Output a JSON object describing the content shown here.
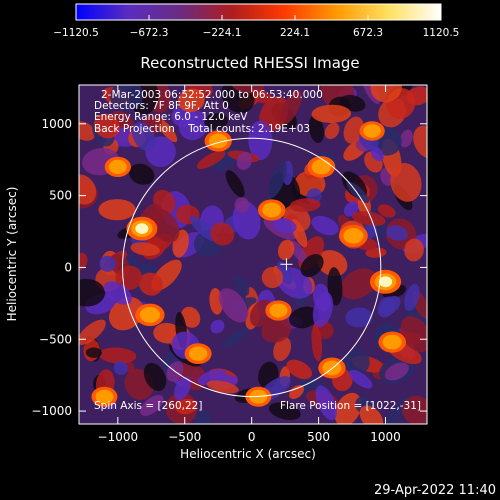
{
  "chart_data": {
    "type": "heatmap",
    "title": "Reconstructed RHESSI Image",
    "xlabel": "Heliocentric X (arcsec)",
    "ylabel": "Heliocentric Y (arcsec)",
    "xlim": [
      -1290,
      1310
    ],
    "ylim": [
      -1090,
      1270
    ],
    "xticks": [
      -1000,
      -500,
      0,
      500,
      1000
    ],
    "yticks": [
      -1000,
      -500,
      0,
      500,
      1000
    ],
    "xtick_labels": [
      "−1000",
      "−500",
      "0",
      "500",
      "1000"
    ],
    "ytick_labels": [
      "−1000",
      "−500",
      "0",
      "500",
      "1000"
    ],
    "colorbar": {
      "range": [
        -1120.5,
        1120.5
      ],
      "tick_values": [
        -1120.5,
        -672.3,
        -224.1,
        224.1,
        672.3,
        1120.5
      ],
      "tick_labels": [
        "−1120.5",
        "−672.3",
        "−224.1",
        "224.1",
        "672.3",
        "1120.5"
      ],
      "colors": [
        "#0000ff",
        "#5a2cc0",
        "#6a2c82",
        "#b01d1d",
        "#ff3a00",
        "#ff9a00",
        "#ffe060",
        "#ffffff"
      ]
    },
    "annotations": [
      "2-Mar-2003 06:52:52.000 to 06:53:40.000",
      "Detectors: 7F 8F 9F, Att 0",
      "Energy Range: 6.0 - 12.0 keV",
      "Back Projection    Total counts: 2.19E+03"
    ],
    "spin_axis_label": "Spin Axis = [260,22]",
    "flare_position_label": "Flare Position = [1022,-31]",
    "spin_axis": [
      260,
      22
    ],
    "solar_disk": {
      "center": [
        0,
        0
      ],
      "radius_arcsec": 965
    },
    "bright_sources": [
      {
        "x": 1000,
        "y": -100,
        "intensity": 1.0
      },
      {
        "x": -820,
        "y": 270,
        "intensity": 0.98
      },
      {
        "x": -760,
        "y": -330,
        "intensity": 0.85
      },
      {
        "x": 760,
        "y": 220,
        "intensity": 0.82
      },
      {
        "x": 520,
        "y": 700,
        "intensity": 0.75
      },
      {
        "x": -250,
        "y": 880,
        "intensity": 0.7
      },
      {
        "x": 150,
        "y": 400,
        "intensity": 0.72
      },
      {
        "x": -400,
        "y": -600,
        "intensity": 0.68
      },
      {
        "x": 600,
        "y": -700,
        "intensity": 0.7
      },
      {
        "x": 1050,
        "y": -520,
        "intensity": 0.72
      },
      {
        "x": 200,
        "y": -300,
        "intensity": 0.62
      },
      {
        "x": -1000,
        "y": 700,
        "intensity": 0.62
      },
      {
        "x": 50,
        "y": -900,
        "intensity": 0.6
      },
      {
        "x": -1100,
        "y": -900,
        "intensity": 0.6
      },
      {
        "x": 900,
        "y": 950,
        "intensity": 0.55
      }
    ]
  },
  "footer": {
    "timestamp": "29-Apr-2022 11:40"
  }
}
